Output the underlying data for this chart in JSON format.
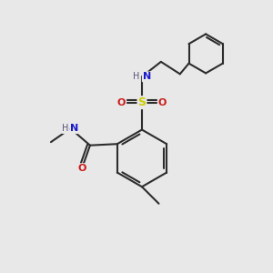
{
  "background_color": "#e8e8e8",
  "bond_color": "#2d2d2d",
  "atom_colors": {
    "N": "#1a1acc",
    "O": "#cc1a1a",
    "S": "#cccc00",
    "C": "#2d2d2d",
    "H": "#555577"
  },
  "figsize": [
    3.0,
    3.0
  ],
  "dpi": 100,
  "xlim": [
    0,
    10
  ],
  "ylim": [
    0,
    10
  ]
}
